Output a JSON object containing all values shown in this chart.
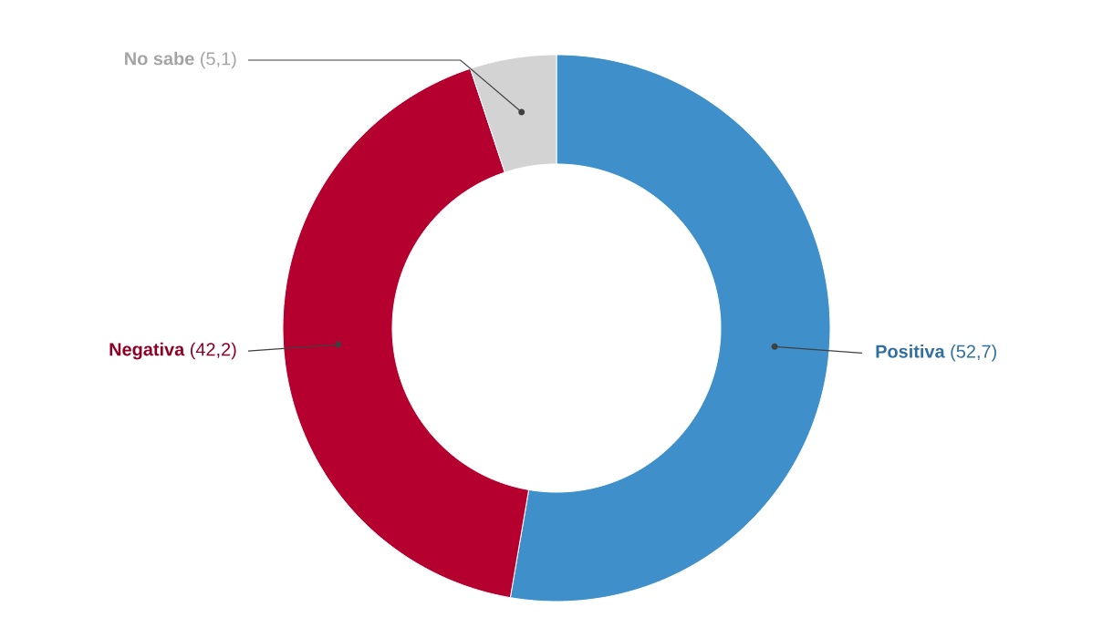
{
  "chart_data": {
    "type": "donut",
    "categories": [
      "Positiva",
      "Negativa",
      "No sabe"
    ],
    "values": [
      52.7,
      42.2,
      5.1
    ],
    "value_labels": [
      "(52,7)",
      "(42,2)",
      "(5,1)"
    ],
    "colors": [
      "#3f8fca",
      "#b5002f",
      "#d3d3d3"
    ]
  }
}
